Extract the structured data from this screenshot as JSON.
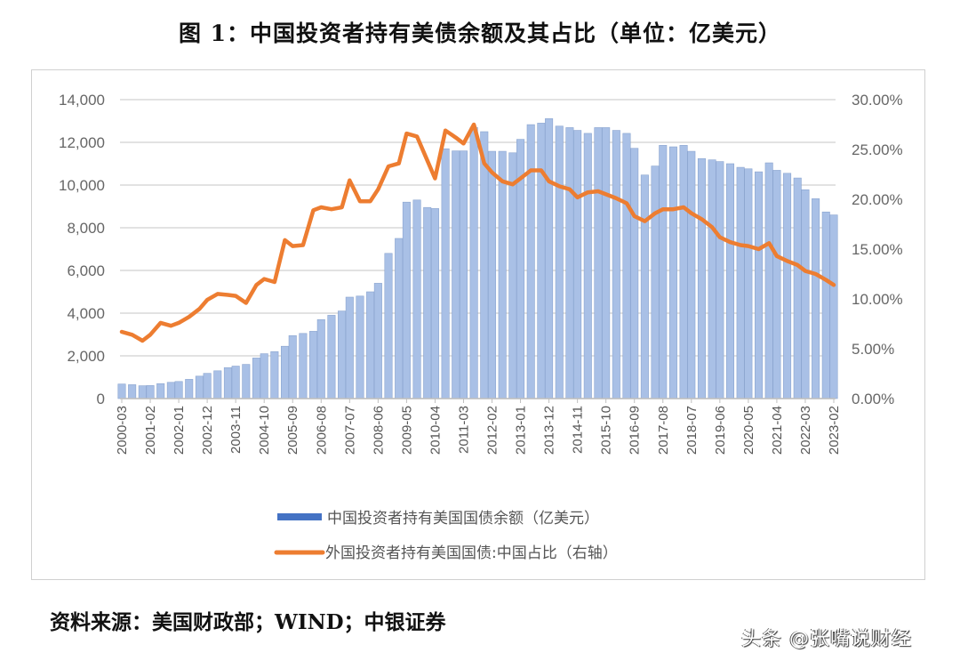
{
  "title": "图 1：中国投资者持有美债余额及其占比（单位：亿美元）",
  "source": "资料来源：美国财政部；WIND；中银证券",
  "watermark": "头条 @张嘴说财经",
  "chart_data": {
    "type": "bar+line",
    "title": "图 1：中国投资者持有美债余额及其占比（单位：亿美元）",
    "colors": {
      "bars": "#a9c0e6",
      "bars_legend": "#4472c4",
      "line": "#ed7d31",
      "grid": "#d9d9d9"
    },
    "grid": true,
    "legend_position": "bottom",
    "y_left": {
      "min": 0,
      "max": 14000,
      "ticks": [
        "0",
        "2,000",
        "4,000",
        "6,000",
        "8,000",
        "10,000",
        "12,000",
        "14,000"
      ]
    },
    "y_right": {
      "min": 0,
      "max": 30,
      "ticks": [
        "0.00%",
        "5.00%",
        "10.00%",
        "15.00%",
        "20.00%",
        "25.00%",
        "30.00%"
      ]
    },
    "x_ticks": [
      "2000-03",
      "2001-02",
      "2002-01",
      "2002-12",
      "2003-11",
      "2004-10",
      "2005-09",
      "2006-08",
      "2007-07",
      "2008-06",
      "2009-05",
      "2010-04",
      "2011-03",
      "2012-02",
      "2013-01",
      "2013-12",
      "2014-11",
      "2015-10",
      "2016-09",
      "2017-08",
      "2018-07",
      "2019-06",
      "2020-05",
      "2021-04",
      "2022-03",
      "2023-02"
    ],
    "dates": [
      "2000-03",
      "2000-07",
      "2000-11",
      "2001-02",
      "2001-06",
      "2001-10",
      "2002-01",
      "2002-05",
      "2002-09",
      "2002-12",
      "2003-04",
      "2003-08",
      "2003-11",
      "2004-03",
      "2004-07",
      "2004-10",
      "2005-02",
      "2005-06",
      "2005-09",
      "2006-01",
      "2006-05",
      "2006-08",
      "2006-12",
      "2007-04",
      "2007-07",
      "2007-11",
      "2008-03",
      "2008-06",
      "2008-10",
      "2009-02",
      "2009-05",
      "2009-09",
      "2010-01",
      "2010-04",
      "2010-08",
      "2010-12",
      "2011-03",
      "2011-07",
      "2011-11",
      "2012-02",
      "2012-06",
      "2012-10",
      "2013-01",
      "2013-05",
      "2013-09",
      "2013-12",
      "2014-04",
      "2014-08",
      "2014-11",
      "2015-03",
      "2015-07",
      "2015-10",
      "2016-02",
      "2016-06",
      "2016-09",
      "2017-01",
      "2017-05",
      "2017-08",
      "2017-12",
      "2018-04",
      "2018-07",
      "2018-11",
      "2019-03",
      "2019-06",
      "2019-10",
      "2020-02",
      "2020-05",
      "2020-09",
      "2021-01",
      "2021-04",
      "2021-08",
      "2021-12",
      "2022-03",
      "2022-07",
      "2022-11",
      "2023-02"
    ],
    "series": [
      {
        "name": "中国投资者持有美国国债余额（亿美元）",
        "axis": "left",
        "type": "bar",
        "values": [
          680,
          650,
          600,
          610,
          700,
          760,
          800,
          900,
          1050,
          1180,
          1300,
          1450,
          1520,
          1600,
          1900,
          2100,
          2200,
          2450,
          2950,
          3050,
          3150,
          3700,
          3900,
          4100,
          4750,
          4800,
          5000,
          5400,
          6800,
          7500,
          9200,
          9300,
          8950,
          8900,
          11700,
          11600,
          11600,
          12700,
          12500,
          11580,
          11580,
          11510,
          12140,
          12830,
          12900,
          13110,
          12760,
          12690,
          12560,
          12420,
          12690,
          12690,
          12560,
          12420,
          11720,
          10470,
          10890,
          11860,
          11790,
          11860,
          11580,
          11240,
          11180,
          11100,
          11000,
          10830,
          10760,
          10620,
          11040,
          10690,
          10550,
          10330,
          9780,
          9360,
          8740,
          8600
        ]
      },
      {
        "name": "外国投资者持有美国国债:中国占比（右轴）",
        "axis": "right",
        "type": "line",
        "unit": "%",
        "values": [
          6.7,
          6.4,
          5.8,
          6.4,
          7.6,
          7.3,
          7.6,
          8.2,
          9.0,
          9.9,
          10.5,
          10.4,
          10.3,
          9.6,
          11.4,
          12.0,
          11.7,
          15.9,
          15.3,
          15.4,
          18.9,
          19.2,
          19.0,
          19.2,
          21.9,
          19.8,
          19.8,
          21.0,
          23.3,
          23.6,
          26.6,
          26.3,
          23.9,
          22.1,
          26.9,
          26.2,
          25.6,
          27.5,
          23.6,
          22.7,
          21.8,
          21.5,
          22.1,
          22.9,
          22.9,
          21.8,
          21.3,
          21.0,
          20.2,
          20.7,
          20.8,
          20.5,
          20.1,
          19.6,
          18.3,
          17.8,
          18.6,
          19.0,
          19.0,
          19.2,
          18.6,
          18.0,
          17.2,
          16.2,
          15.7,
          15.4,
          15.3,
          15.0,
          15.6,
          14.3,
          13.8,
          13.4,
          12.8,
          12.5,
          11.9,
          11.4
        ]
      }
    ]
  }
}
